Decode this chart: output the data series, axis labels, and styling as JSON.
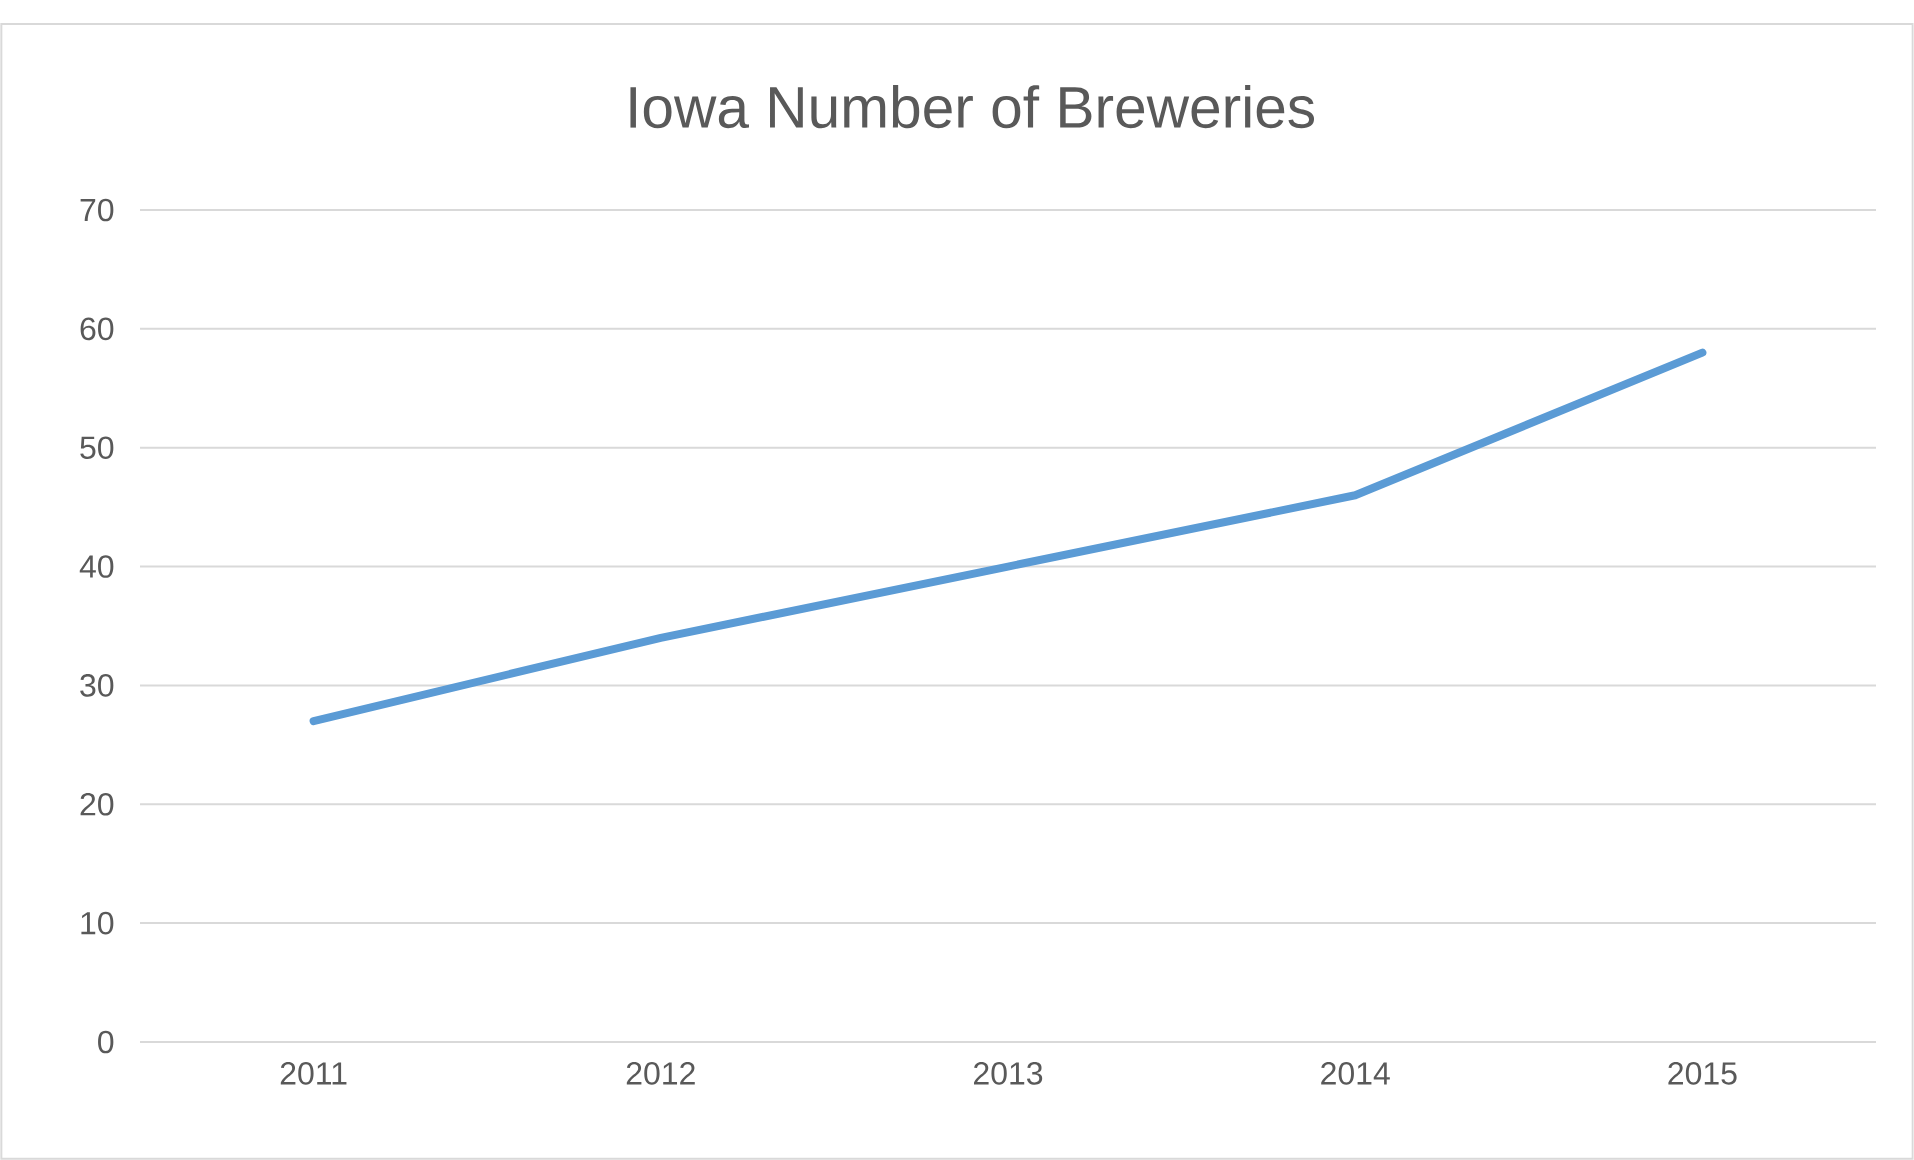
{
  "chart_data": {
    "type": "line",
    "title": "Iowa Number of Breweries",
    "categories": [
      "2011",
      "2012",
      "2013",
      "2014",
      "2015"
    ],
    "values": [
      27,
      34,
      40,
      46,
      58
    ],
    "color": "#5b9bd5",
    "ylim": [
      0,
      70
    ],
    "yticks": [
      0,
      10,
      20,
      30,
      40,
      50,
      60,
      70
    ],
    "grid": "y",
    "marker": "none",
    "line_style": "solid"
  }
}
